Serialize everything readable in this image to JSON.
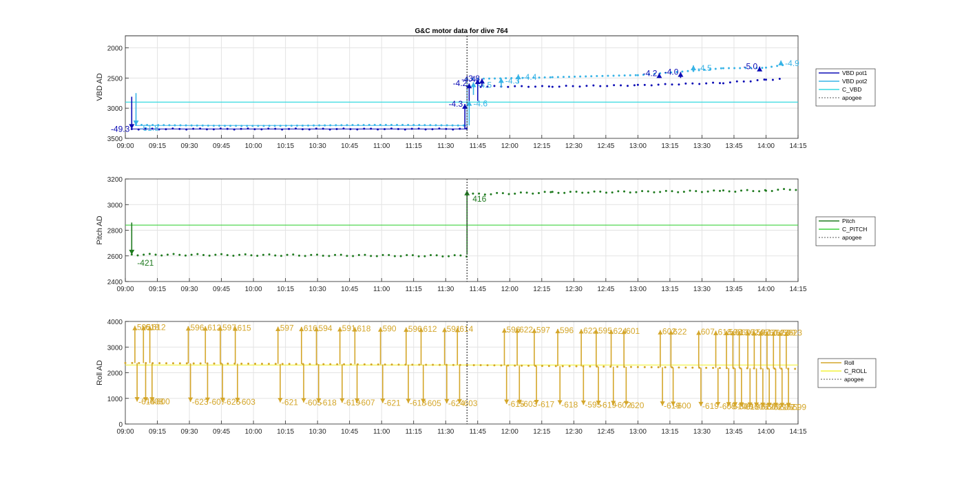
{
  "title": "G&C motor data for dive 764",
  "colors": {
    "vbd_pot1": "#0b0bb5",
    "vbd_pot2": "#37b3e6",
    "c_vbd": "#35d9e0",
    "pitch": "#1f7a1f",
    "c_pitch": "#3cd23c",
    "roll": "#d4a62a",
    "c_roll": "#f2f23a",
    "apogee": "#555555",
    "grid": "#e3e3e3",
    "axis": "#262626"
  },
  "chart_data": [
    {
      "type": "line",
      "id": "vbd",
      "ylabel": "VBD AD",
      "x_ticks": [
        "09:00",
        "09:15",
        "09:30",
        "09:45",
        "10:00",
        "10:15",
        "10:30",
        "10:45",
        "11:00",
        "11:15",
        "11:30",
        "11:45",
        "12:00",
        "12:15",
        "12:30",
        "12:45",
        "13:00",
        "13:15",
        "13:30",
        "13:45",
        "14:00",
        "14:15"
      ],
      "xlim": [
        0,
        315
      ],
      "y_reversed": true,
      "ylim": [
        1800,
        3500
      ],
      "y_ticks": [
        "2000",
        "2500",
        "3000",
        "3500"
      ],
      "grid": true,
      "apogee": 160,
      "legend_placement": "right",
      "legend": [
        "VBD pot1",
        "VBD pot2",
        "C_VBD",
        "apogee"
      ],
      "c_line": 2900,
      "series": [
        {
          "name": "VBD pot1",
          "x_start": 3,
          "x_end": 308,
          "segments": [
            [
              3,
              3345
            ],
            [
              160,
              3345
            ],
            [
              160,
              2640
            ],
            [
              200,
              2640
            ],
            [
              240,
              2620
            ],
            [
              280,
              2580
            ],
            [
              300,
              2530
            ],
            [
              308,
              2510
            ]
          ]
        },
        {
          "name": "VBD pot2",
          "segments": [
            [
              5,
              3285
            ],
            [
              160,
              3285
            ],
            [
              160,
              2520
            ],
            [
              200,
              2480
            ],
            [
              240,
              2460
            ],
            [
              280,
              2330
            ],
            [
              300,
              2330
            ],
            [
              308,
              2290
            ]
          ]
        }
      ],
      "events": [
        {
          "label": "-49.3",
          "x": 3,
          "y_from": 2810,
          "y_to": 3345,
          "series": "VBD pot1"
        },
        {
          "label": "-51.8",
          "x": 5,
          "y_from": 2750,
          "y_to": 3285,
          "series": "VBD pot2"
        },
        {
          "label": "-4.3",
          "x": 159,
          "y_from": 3345,
          "y_to": 2930,
          "series": "VBD pot1"
        },
        {
          "label": "-4.6",
          "x": 161,
          "y_from": 3285,
          "y_to": 2880,
          "series": "VBD pot2"
        },
        {
          "label": "-4.2",
          "x": 161,
          "y_from": 2880,
          "y_to": 2590,
          "series": "VBD pot1"
        },
        {
          "label": "-4.4",
          "x": 165,
          "y_from": 2880,
          "y_to": 2520,
          "series": "VBD pot1"
        },
        {
          "label": "-4.5",
          "x": 163,
          "y_from": 2780,
          "y_to": 2570,
          "series": "VBD pot2"
        },
        {
          "label": "-3.8",
          "x": 167,
          "y_from": 2640,
          "y_to": 2510,
          "series": "VBD pot1"
        },
        {
          "label": "-4.3",
          "x": 176,
          "y_from": 2660,
          "y_to": 2500,
          "series": "VBD pot2"
        },
        {
          "label": "-4.4",
          "x": 184,
          "y_from": 2590,
          "y_to": 2440,
          "series": "VBD pot2"
        },
        {
          "label": "-4.2",
          "x": 250,
          "y_from": 2500,
          "y_to": 2420,
          "series": "VBD pot1"
        },
        {
          "label": "-4.0",
          "x": 260,
          "y_from": 2500,
          "y_to": 2400,
          "series": "VBD pot1"
        },
        {
          "label": "-4.5",
          "x": 266,
          "y_from": 2400,
          "y_to": 2290,
          "series": "VBD pot2"
        },
        {
          "label": "-5.0",
          "x": 297,
          "y_from": 2370,
          "y_to": 2310,
          "series": "VBD pot1"
        },
        {
          "label": "-4.9",
          "x": 307,
          "y_from": 2290,
          "y_to": 2210,
          "series": "VBD pot2"
        }
      ]
    },
    {
      "type": "line",
      "id": "pitch",
      "ylabel": "Pitch AD",
      "x_ticks": [
        "09:00",
        "09:15",
        "09:30",
        "09:45",
        "10:00",
        "10:15",
        "10:30",
        "10:45",
        "11:00",
        "11:15",
        "11:30",
        "11:45",
        "12:00",
        "12:15",
        "12:30",
        "12:45",
        "13:00",
        "13:15",
        "13:30",
        "13:45",
        "14:00",
        "14:15"
      ],
      "xlim": [
        0,
        315
      ],
      "ylim": [
        2400,
        3200
      ],
      "y_ticks": [
        "2400",
        "2600",
        "2800",
        "3000",
        "3200"
      ],
      "grid": true,
      "apogee": 160,
      "legend_placement": "right",
      "legend": [
        "Pitch",
        "C_PITCH",
        "apogee"
      ],
      "c_line": 2840,
      "series": [
        {
          "name": "Pitch",
          "segments": [
            [
              3,
              2610
            ],
            [
              160,
              2600
            ],
            [
              160,
              3080
            ],
            [
              200,
              3095
            ],
            [
              280,
              3105
            ],
            [
              300,
              3110
            ],
            [
              315,
              3120
            ]
          ]
        }
      ],
      "events": [
        {
          "label": "-421",
          "x": 3,
          "y_from": 2860,
          "y_to": 2610
        },
        {
          "label": "416",
          "x": 160,
          "y_from": 2610,
          "y_to": 3110
        }
      ]
    },
    {
      "type": "line",
      "id": "roll",
      "ylabel": "Roll AD",
      "x_ticks": [
        "09:00",
        "09:15",
        "09:30",
        "09:45",
        "10:00",
        "10:15",
        "10:30",
        "10:45",
        "11:00",
        "11:15",
        "11:30",
        "11:45",
        "12:00",
        "12:15",
        "12:30",
        "12:45",
        "13:00",
        "13:15",
        "13:30",
        "13:45",
        "14:00",
        "14:15"
      ],
      "xlim": [
        0,
        315
      ],
      "ylim": [
        0,
        4000
      ],
      "y_ticks": [
        "0",
        "1000",
        "2000",
        "3000",
        "4000"
      ],
      "grid": true,
      "apogee": 160,
      "legend_placement": "right",
      "legend": [
        "Roll",
        "C_ROLL",
        "apogee"
      ],
      "c_line": 2300,
      "trend": [
        [
          0,
          2380
        ],
        [
          160,
          2300
        ],
        [
          315,
          2150
        ]
      ],
      "events": [
        {
          "x": 5,
          "up": "595",
          "dn": "-614"
        },
        {
          "x": 9,
          "up": "618",
          "dn": "-608"
        },
        {
          "x": 12,
          "up": "612",
          "dn": "-600"
        },
        {
          "x": 30,
          "up": "596",
          "dn": "-623"
        },
        {
          "x": 38,
          "up": "612",
          "dn": "-607"
        },
        {
          "x": 45,
          "up": "597",
          "dn": "-626"
        },
        {
          "x": 52,
          "up": "615",
          "dn": "-603"
        },
        {
          "x": 72,
          "up": "597",
          "dn": "-621"
        },
        {
          "x": 83,
          "up": "616",
          "dn": "-605"
        },
        {
          "x": 90,
          "up": "594",
          "dn": "-618"
        },
        {
          "x": 101,
          "up": "591",
          "dn": "-619"
        },
        {
          "x": 108,
          "up": "618",
          "dn": "-607"
        },
        {
          "x": 120,
          "up": "590",
          "dn": "-621"
        },
        {
          "x": 132,
          "up": "596",
          "dn": "-618"
        },
        {
          "x": 139,
          "up": "612",
          "dn": "-605"
        },
        {
          "x": 150,
          "up": "591",
          "dn": "-624"
        },
        {
          "x": 156,
          "up": "614",
          "dn": "-603"
        },
        {
          "x": 178,
          "up": "596",
          "dn": "-615"
        },
        {
          "x": 184,
          "up": "622",
          "dn": "-603"
        },
        {
          "x": 192,
          "up": "597",
          "dn": "-617"
        },
        {
          "x": 203,
          "up": "596",
          "dn": "-618"
        },
        {
          "x": 214,
          "up": "622",
          "dn": "-595"
        },
        {
          "x": 221,
          "up": "595",
          "dn": "-619"
        },
        {
          "x": 228,
          "up": "624",
          "dn": "-602"
        },
        {
          "x": 234,
          "up": "601",
          "dn": "-620"
        },
        {
          "x": 251,
          "up": "602",
          "dn": "-619"
        },
        {
          "x": 256,
          "up": "622",
          "dn": "-600"
        },
        {
          "x": 269,
          "up": "607",
          "dn": "-619"
        },
        {
          "x": 277,
          "up": "618",
          "dn": "-605"
        },
        {
          "x": 282,
          "up": "598",
          "dn": "-610"
        },
        {
          "x": 285,
          "up": "613",
          "dn": "-609"
        },
        {
          "x": 288,
          "up": "607",
          "dn": "-612"
        },
        {
          "x": 292,
          "up": "624",
          "dn": "-606"
        },
        {
          "x": 295,
          "up": "597",
          "dn": "-612"
        },
        {
          "x": 298,
          "up": "617",
          "dn": "-606"
        },
        {
          "x": 301,
          "up": "604",
          "dn": "-621"
        },
        {
          "x": 304,
          "up": "623",
          "dn": "-605"
        },
        {
          "x": 307,
          "up": "599",
          "dn": "-621"
        },
        {
          "x": 310,
          "up": "623",
          "dn": "-599"
        }
      ]
    }
  ]
}
